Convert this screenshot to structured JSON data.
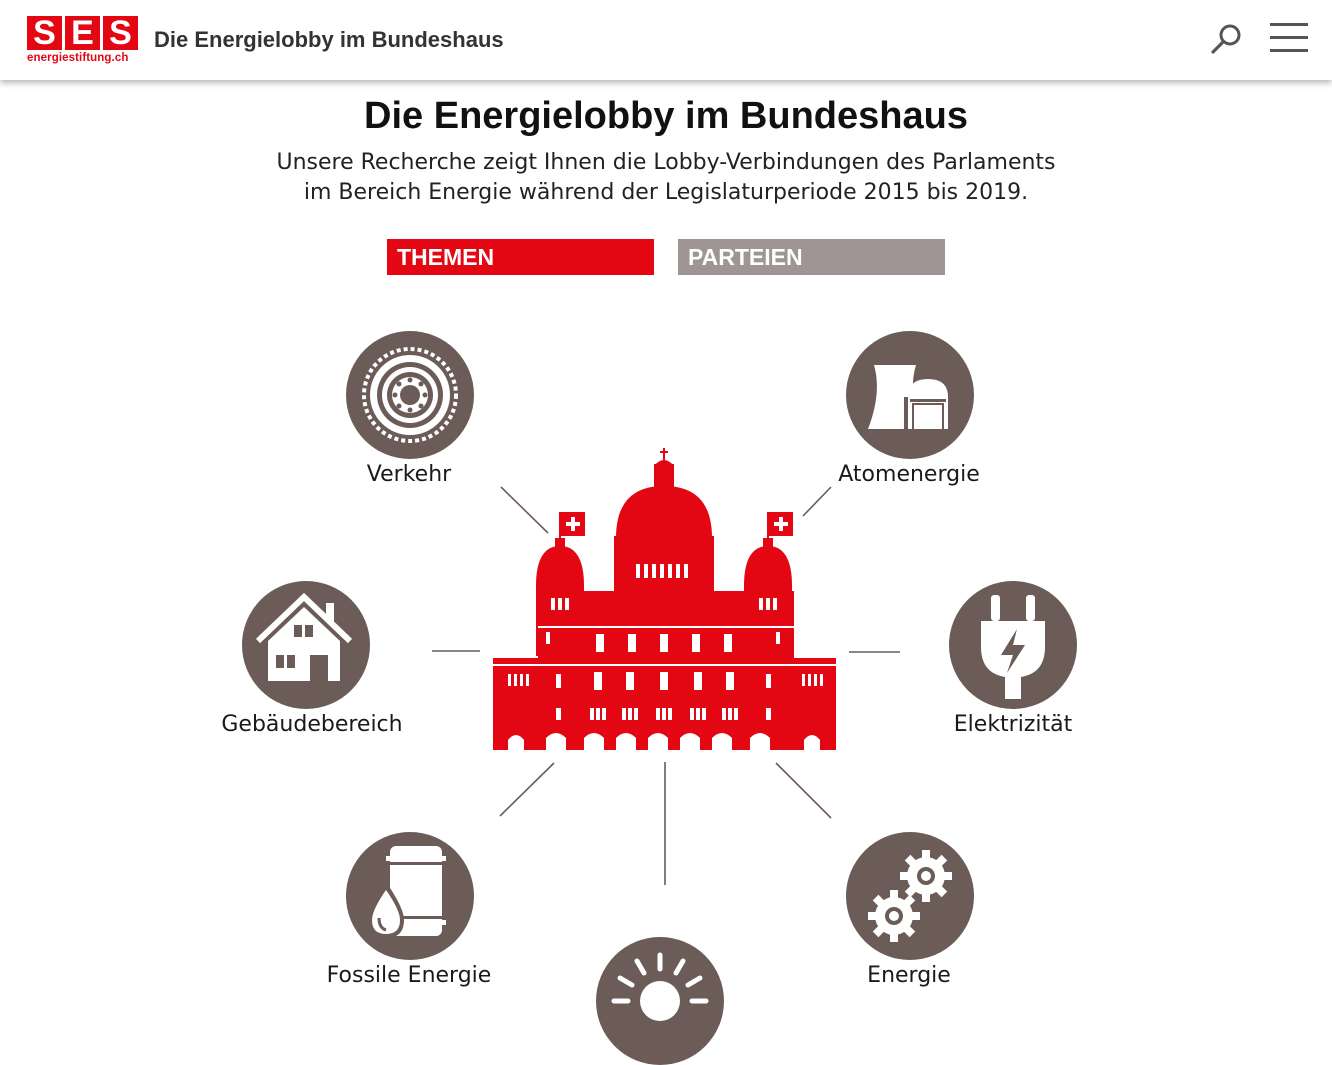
{
  "header": {
    "logo_letters": [
      "S",
      "E",
      "S"
    ],
    "logo_subtitle": "energiestiftung.ch",
    "site_title": "Die Energielobby im Bundeshaus",
    "accent_color": "#e30613",
    "icons": [
      "search-icon",
      "menu-icon"
    ]
  },
  "intro": {
    "title": "Die Energielobby im Bundeshaus",
    "line1": "Unsere Recherche zeigt Ihnen die Lobby-Verbindungen des Parlaments",
    "line2": "im Bereich Energie während der Legislaturperiode 2015 bis 2019."
  },
  "tabs": {
    "themen": "THEMEN",
    "parteien": "PARTEIEN",
    "active": "THEMEN",
    "active_color": "#e30613",
    "inactive_color": "#9f9595"
  },
  "topics": {
    "icon_color": "#6b5c58",
    "verkehr": {
      "label": "Verkehr",
      "icon": "tire-icon"
    },
    "atomenergie": {
      "label": "Atomenergie",
      "icon": "nuclear-plant-icon"
    },
    "gebaeude": {
      "label": "Gebäudebereich",
      "icon": "house-icon"
    },
    "elektrizitaet": {
      "label": "Elektrizität",
      "icon": "plug-icon"
    },
    "fossil": {
      "label": "Fossile Energie",
      "icon": "oil-barrel-icon"
    },
    "effizienz": {
      "label": "Energie",
      "icon": "gears-icon"
    },
    "sonne": {
      "label": "",
      "icon": "sun-icon"
    }
  },
  "center": {
    "icon": "federal-palace-icon"
  }
}
